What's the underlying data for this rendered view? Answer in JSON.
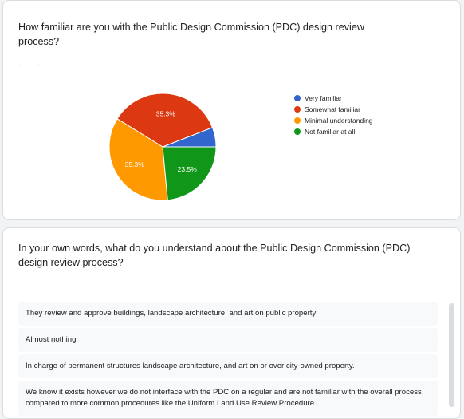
{
  "question1": {
    "title": "How familiar are you with the Public Design Commission (PDC) design review process?",
    "chart_data": {
      "type": "pie",
      "title": "",
      "slices": [
        {
          "label": "Very familiar",
          "value": 5.9,
          "color": "#3366cc"
        },
        {
          "label": "Somewhat familiar",
          "value": 35.3,
          "color": "#dc3912"
        },
        {
          "label": "Minimal understanding",
          "value": 35.3,
          "color": "#ff9900"
        },
        {
          "label": "Not familiar at all",
          "value": 23.5,
          "color": "#109618"
        }
      ],
      "data_labels": [
        "35.3%",
        "35.3%",
        "23.5%"
      ],
      "legend_position": "right"
    }
  },
  "question2": {
    "title": "In your own words, what do you understand about the Public Design Commission (PDC) design review process?",
    "responses": [
      "They review and approve buildings, landscape architecture, and art on public property",
      "Almost nothing",
      "In charge of permanent structures landscape architecture, and art on or over city-owned property.",
      "We know it exists however we do not interface with the PDC on a regular and are not familiar with the overall process compared to more common procedures like the Uniform Land Use Review Procedure"
    ]
  }
}
